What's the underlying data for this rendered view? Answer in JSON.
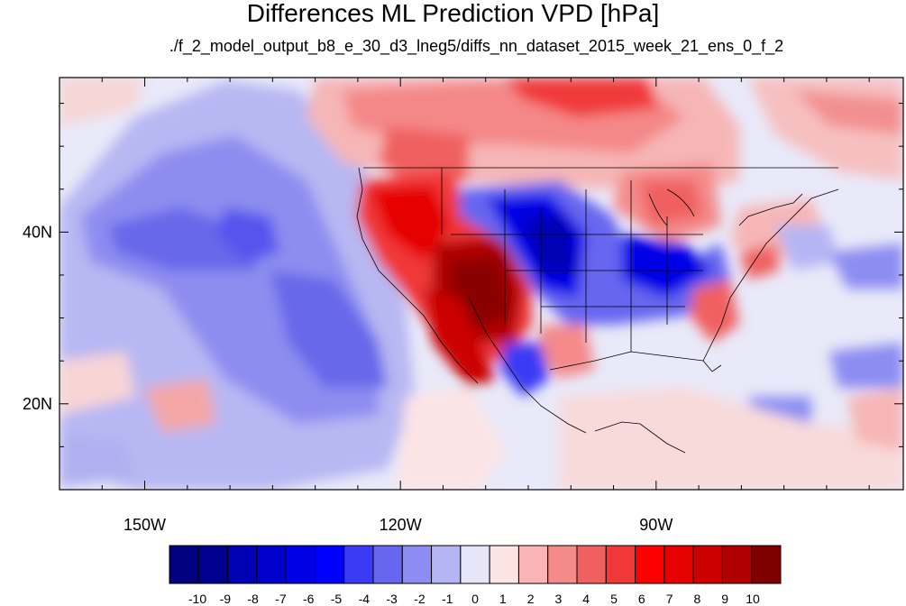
{
  "figure": {
    "title": "Differences ML Prediction VPD [hPa]",
    "subtitle": "./f_2_model_output_b8_e_30_d3_lneg5/diffs_nn_dataset_2015_week_21_ens_0_f_2"
  },
  "map": {
    "lon_range": [
      -160,
      -61
    ],
    "lat_range": [
      10,
      58
    ],
    "lon_ticks": [
      {
        "value": -150,
        "label": "150W"
      },
      {
        "value": -120,
        "label": "120W"
      },
      {
        "value": -90,
        "label": "90W"
      }
    ],
    "lat_ticks": [
      {
        "value": 40,
        "label": "40N"
      },
      {
        "value": 20,
        "label": "20N"
      }
    ]
  },
  "colorbar": {
    "labels": [
      "-10",
      "-9",
      "-8",
      "-7",
      "-6",
      "-5",
      "-4",
      "-3",
      "-2",
      "-1",
      "0",
      "1",
      "2",
      "3",
      "4",
      "5",
      "6",
      "7",
      "8",
      "9",
      "10"
    ],
    "colors": [
      "#000080",
      "#00008f",
      "#0000b4",
      "#0000cd",
      "#0000e6",
      "#0000ff",
      "#3b3bf5",
      "#6666f0",
      "#8c8cf2",
      "#b5b5f5",
      "#e6e6f8",
      "#fde4e4",
      "#fab4b4",
      "#f58a8a",
      "#f06060",
      "#f03838",
      "#ff0000",
      "#e60000",
      "#cc0000",
      "#b00000",
      "#800000"
    ]
  }
}
